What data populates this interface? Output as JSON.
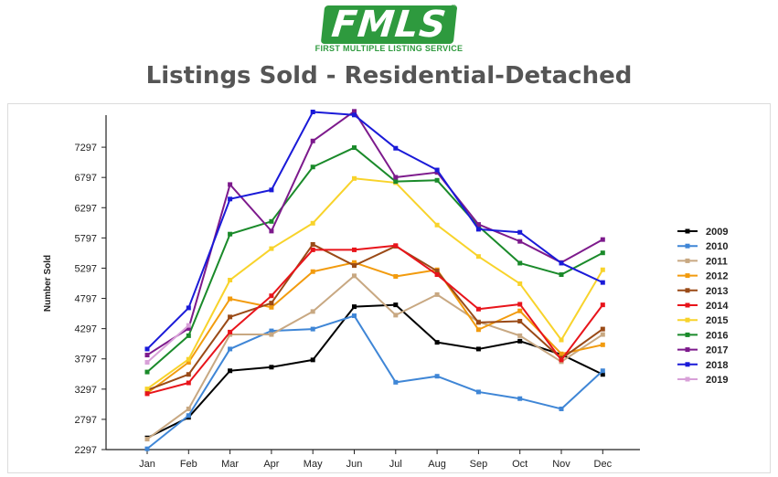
{
  "header": {
    "logo_text": "FMLS",
    "logo_registered": "®",
    "logo_subtitle": "FIRST MULTIPLE LISTING SERVICE",
    "title": "Listings Sold - Residential-Detached"
  },
  "chart_data": {
    "type": "line",
    "title": "Listings Sold - Residential-Detached",
    "xlabel": "",
    "ylabel": "Number Sold",
    "categories": [
      "Jan",
      "Feb",
      "Mar",
      "Apr",
      "May",
      "Jun",
      "Jul",
      "Aug",
      "Sep",
      "Oct",
      "Nov",
      "Dec"
    ],
    "y_ticks": [
      2297,
      2797,
      3297,
      3797,
      4297,
      4797,
      5297,
      5797,
      6297,
      6797,
      7297
    ],
    "ylim": [
      2297,
      7797
    ],
    "grid": false,
    "legend_position": "right",
    "series": [
      {
        "name": "2009",
        "color": "#000000",
        "values": [
          2490,
          2830,
          3600,
          3660,
          3780,
          4660,
          4690,
          4070,
          3960,
          4090,
          3870,
          3540
        ]
      },
      {
        "name": "2010",
        "color": "#3f86d6",
        "values": [
          2310,
          2860,
          3960,
          4260,
          4290,
          4510,
          3410,
          3510,
          3250,
          3140,
          2970,
          3600
        ]
      },
      {
        "name": "2011",
        "color": "#c8a882",
        "values": [
          2470,
          2970,
          4200,
          4200,
          4580,
          5170,
          4520,
          4860,
          4410,
          4180,
          3750,
          4200
        ]
      },
      {
        "name": "2012",
        "color": "#f29b0e",
        "values": [
          3230,
          3740,
          4790,
          4650,
          5240,
          5390,
          5160,
          5270,
          4280,
          4590,
          3880,
          4030
        ]
      },
      {
        "name": "2013",
        "color": "#9a4a17",
        "values": [
          3280,
          3540,
          4490,
          4720,
          5690,
          5340,
          5660,
          5250,
          4400,
          4420,
          3800,
          4290
        ]
      },
      {
        "name": "2014",
        "color": "#e8141b",
        "values": [
          3220,
          3400,
          4240,
          4840,
          5600,
          5600,
          5670,
          5190,
          4620,
          4700,
          3780,
          4690
        ]
      },
      {
        "name": "2015",
        "color": "#f8d32b",
        "values": [
          3300,
          3790,
          5100,
          5620,
          6040,
          6780,
          6710,
          6010,
          5490,
          5040,
          4110,
          5270
        ]
      },
      {
        "name": "2016",
        "color": "#1a8a2a",
        "values": [
          3580,
          4180,
          5860,
          6070,
          6970,
          7290,
          6730,
          6750,
          5990,
          5380,
          5190,
          5550
        ]
      },
      {
        "name": "2017",
        "color": "#7d1a8c",
        "values": [
          3860,
          4300,
          6680,
          5910,
          7400,
          7890,
          6800,
          6880,
          6020,
          5740,
          5390,
          5770
        ]
      },
      {
        "name": "2018",
        "color": "#1a1ad8",
        "values": [
          3960,
          4640,
          6440,
          6590,
          7880,
          7830,
          7280,
          6920,
          5940,
          5890,
          5380,
          5060
        ]
      },
      {
        "name": "2019",
        "color": "#d8a0d8",
        "values": [
          3740,
          4350,
          null,
          null,
          null,
          null,
          null,
          null,
          null,
          null,
          null,
          null
        ]
      }
    ]
  }
}
